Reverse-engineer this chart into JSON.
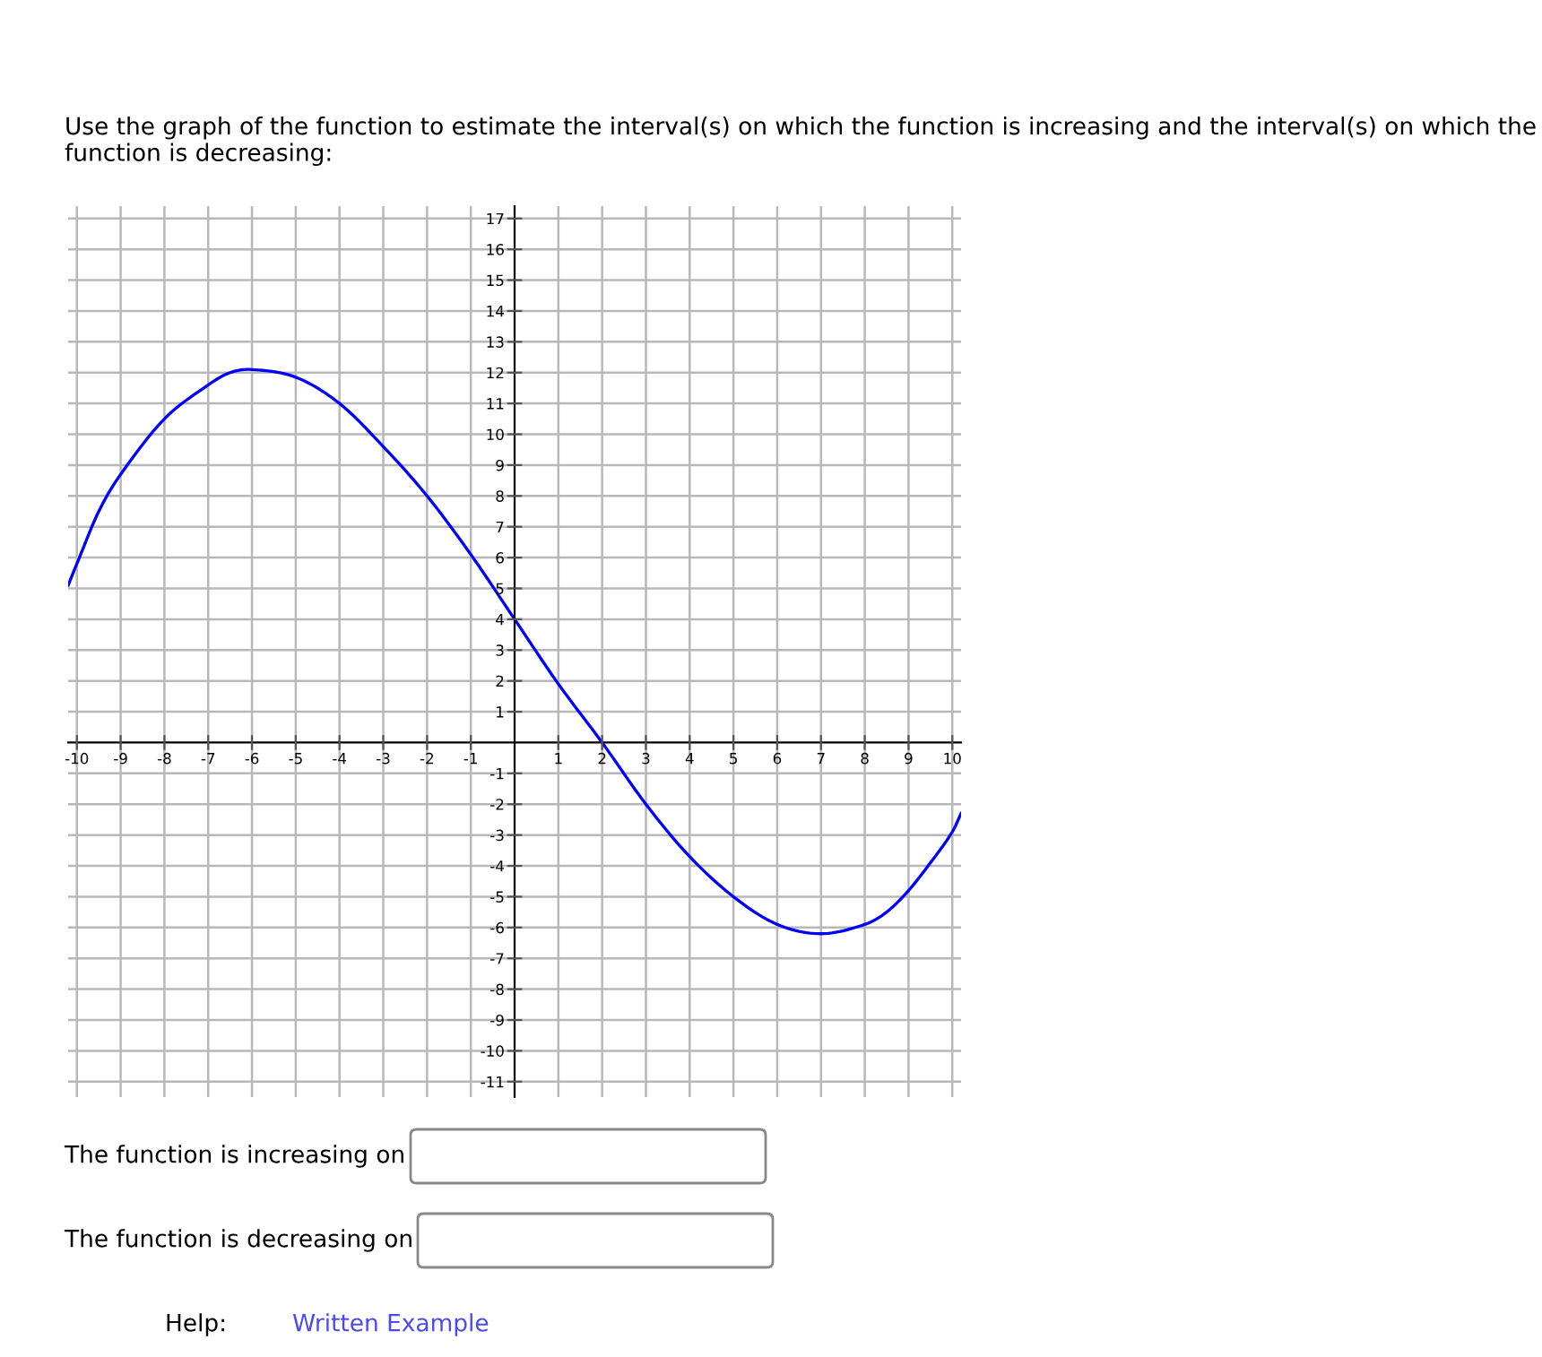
{
  "chart_data": {
    "type": "line",
    "title": "Use the graph of the function to estimate the interval(s) on which the function is increasing and the interval(s) on which the function is decreasing:",
    "x": [
      -10.2,
      -10,
      -9.5,
      -9,
      -8,
      -7,
      -6.5,
      -6,
      -5,
      -4,
      -3,
      -2,
      -1,
      0,
      1,
      2,
      3,
      4,
      5,
      6,
      7,
      8,
      8.5,
      9,
      9.5,
      10,
      10.2
    ],
    "series": [
      {
        "color": "#0000ff",
        "values": [
          5.1,
          5.8,
          7.5,
          8.7,
          10.5,
          11.6,
          12.0,
          12.1,
          11.85,
          11.0,
          9.6,
          8.0,
          6.1,
          4.0,
          1.9,
          0.0,
          -2.0,
          -3.7,
          -5.0,
          -5.9,
          -6.2,
          -5.9,
          -5.5,
          -4.8,
          -3.9,
          -2.9,
          -2.3
        ]
      }
    ],
    "xlim": [
      -10.2,
      10.2
    ],
    "ylim": [
      -11.5,
      17.4
    ],
    "xticks": [
      -10,
      -9,
      -8,
      -7,
      -6,
      -5,
      -4,
      -3,
      -2,
      -1,
      1,
      2,
      3,
      4,
      5,
      6,
      7,
      8,
      9,
      10
    ],
    "yticks": [
      -11,
      -10,
      -9,
      -8,
      -7,
      -6,
      -5,
      -4,
      -3,
      -2,
      -1,
      1,
      2,
      3,
      4,
      5,
      6,
      7,
      8,
      9,
      10,
      11,
      12,
      13,
      14,
      15,
      16,
      17
    ],
    "grid": true,
    "marker": "none",
    "line_style": "solid",
    "annotations": [
      "The function is increasing on",
      "The function is decreasing on",
      "Help:",
      "Written Example"
    ]
  }
}
